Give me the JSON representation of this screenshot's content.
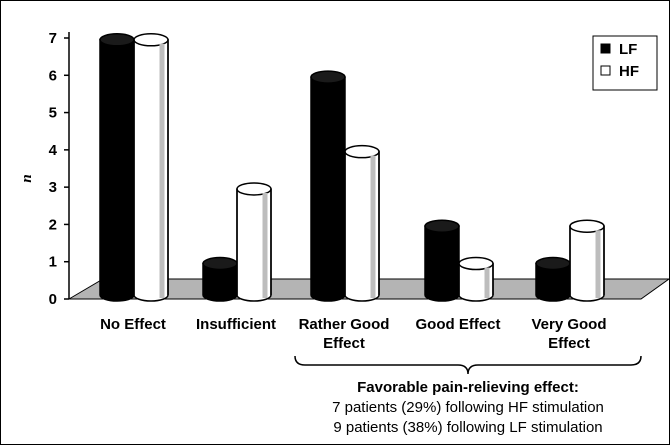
{
  "chart_data": {
    "type": "bar",
    "title": "",
    "xlabel": "",
    "ylabel": "n",
    "ylim": [
      0,
      7
    ],
    "yticks": [
      0,
      1,
      2,
      3,
      4,
      5,
      6,
      7
    ],
    "categories": [
      [
        "No Effect"
      ],
      [
        "Insufficient"
      ],
      [
        "Rather Good",
        "Effect"
      ],
      [
        "Good Effect"
      ],
      [
        "Very Good",
        "Effect"
      ]
    ],
    "series": [
      {
        "name": "LF",
        "values": [
          7,
          1,
          6,
          2,
          1
        ],
        "color": "#000000"
      },
      {
        "name": "HF",
        "values": [
          7,
          3,
          4,
          1,
          2
        ],
        "color": "#ffffff"
      }
    ],
    "legend": "top-right",
    "floor_color": "#b4b4b4",
    "annotation": {
      "title": "Favorable pain-relieving effect:",
      "lines": [
        "7 patients (29%) following HF stimulation",
        "9 patients (38%) following LF stimulation"
      ]
    }
  }
}
